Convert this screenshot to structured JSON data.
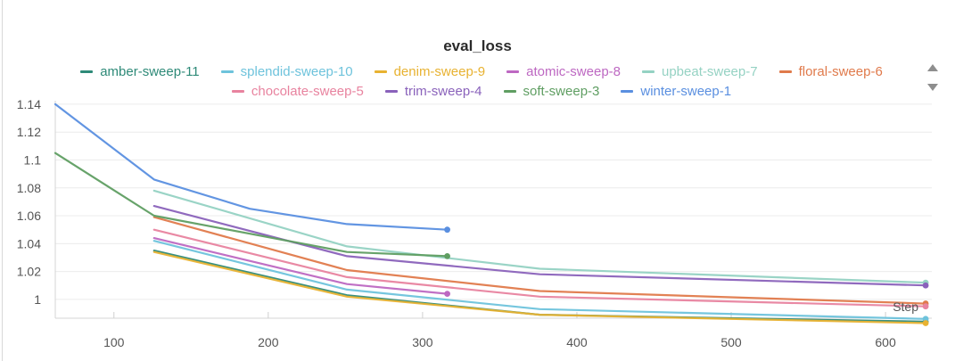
{
  "chart_data": {
    "type": "line",
    "title": "eval_loss",
    "xlabel": "Step",
    "ylabel": "",
    "xlim": [
      62,
      630
    ],
    "ylim": [
      0.9865,
      1.1425
    ],
    "x_ticks": [
      100,
      200,
      300,
      400,
      500,
      600
    ],
    "y_ticks": [
      1,
      1.02,
      1.04,
      1.06,
      1.08,
      1.1,
      1.12,
      1.14
    ],
    "y_tick_labels": [
      "1",
      "1.02",
      "1.04",
      "1.06",
      "1.08",
      "1.1",
      "1.12",
      "1.14"
    ],
    "grid": true,
    "legend_position": "top",
    "series": [
      {
        "name": "amber-sweep-11",
        "color": "#2e8a78",
        "x": [
          126,
          251,
          376,
          626
        ],
        "y": [
          1.035,
          1.003,
          0.989,
          0.984
        ]
      },
      {
        "name": "splendid-sweep-10",
        "color": "#6ec3dc",
        "x": [
          126,
          251,
          376,
          626
        ],
        "y": [
          1.042,
          1.007,
          0.993,
          0.986
        ]
      },
      {
        "name": "denim-sweep-9",
        "color": "#e8b231",
        "x": [
          126,
          251,
          376,
          626
        ],
        "y": [
          1.034,
          1.002,
          0.989,
          0.983
        ]
      },
      {
        "name": "atomic-sweep-8",
        "color": "#bd68c2",
        "x": [
          126,
          251,
          316
        ],
        "y": [
          1.044,
          1.011,
          1.004
        ]
      },
      {
        "name": "upbeat-sweep-7",
        "color": "#95d2c3",
        "x": [
          126,
          251,
          376,
          626
        ],
        "y": [
          1.078,
          1.038,
          1.022,
          1.012
        ]
      },
      {
        "name": "floral-sweep-6",
        "color": "#e07a4b",
        "x": [
          126,
          251,
          376,
          626
        ],
        "y": [
          1.059,
          1.021,
          1.006,
          0.997
        ]
      },
      {
        "name": "chocolate-sweep-5",
        "color": "#e8839f",
        "x": [
          126,
          251,
          376,
          626
        ],
        "y": [
          1.05,
          1.016,
          1.002,
          0.995
        ]
      },
      {
        "name": "trim-sweep-4",
        "color": "#8a62bb",
        "x": [
          126,
          251,
          376,
          626
        ],
        "y": [
          1.067,
          1.031,
          1.018,
          1.01
        ]
      },
      {
        "name": "soft-sweep-3",
        "color": "#5f9e62",
        "x": [
          62,
          126,
          251,
          316
        ],
        "y": [
          1.105,
          1.06,
          1.034,
          1.031
        ]
      },
      {
        "name": "winter-sweep-1",
        "color": "#5a8fe0",
        "x": [
          62,
          126,
          188,
          251,
          316
        ],
        "y": [
          1.14,
          1.086,
          1.065,
          1.054,
          1.05
        ]
      }
    ]
  }
}
